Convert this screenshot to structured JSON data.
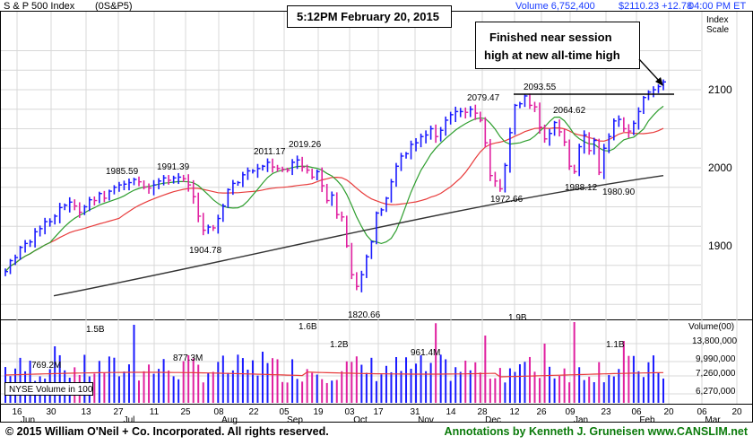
{
  "header": {
    "index_name": "S & P 500 Index",
    "symbol": "(0S&P5)",
    "volume": "Volume 6,752,400",
    "price": "$2110.23 +12.78",
    "time": "04:00 PM ET",
    "scale_label_1": "Index",
    "scale_label_2": "Scale"
  },
  "annotations": {
    "timestamp": "5:12PM February 20, 2015",
    "note_line1": "Finished near session",
    "note_line2": "high at new all-time high"
  },
  "footer": {
    "left": "© 2015  William O'Neil + Co. Incorporated. All rights reserved.",
    "right": "Annotations by Kenneth J. Gruneisen www.CANSLIM.net"
  },
  "volume_panel": {
    "title": "Volume(00)",
    "legend": "NYSE Volume in 100"
  },
  "chart_data": {
    "type": "bar",
    "price_axis": {
      "ticks": [
        1900,
        2000,
        2100
      ],
      "range": [
        1815,
        2160
      ]
    },
    "volume_axis": {
      "ticks": [
        "13,800,000",
        "9,990,000",
        "7,260,000",
        "6,270,000"
      ]
    },
    "date_labels": [
      {
        "day": "16",
        "month": "Jun"
      },
      {
        "day": "30",
        "month": ""
      },
      {
        "day": "13",
        "month": ""
      },
      {
        "day": "27",
        "month": "Jul"
      },
      {
        "day": "11",
        "month": ""
      },
      {
        "day": "25",
        "month": ""
      },
      {
        "day": "08",
        "month": "Aug"
      },
      {
        "day": "22",
        "month": ""
      },
      {
        "day": "05",
        "month": "Sep"
      },
      {
        "day": "19",
        "month": ""
      },
      {
        "day": "03",
        "month": "Oct"
      },
      {
        "day": "17",
        "month": ""
      },
      {
        "day": "31",
        "month": "Nov"
      },
      {
        "day": "14",
        "month": ""
      },
      {
        "day": "28",
        "month": "Dec"
      },
      {
        "day": "12",
        "month": ""
      },
      {
        "day": "26",
        "month": ""
      },
      {
        "day": "09",
        "month": "Jan"
      },
      {
        "day": "23",
        "month": ""
      },
      {
        "day": "06",
        "month": "Feb"
      },
      {
        "day": "20",
        "month": ""
      },
      {
        "day": "06",
        "month": "Mar"
      },
      {
        "day": "20",
        "month": ""
      }
    ],
    "price_labels": [
      "1985.59",
      "1991.39",
      "1904.78",
      "2011.17",
      "2019.26",
      "1820.66",
      "2079.47",
      "2093.55",
      "1972.66",
      "2064.62",
      "1988.12",
      "1980.90"
    ],
    "volume_labels": [
      "769.2M",
      "1.5B",
      "877.3M",
      "1.6B",
      "1.2B",
      "961.4M",
      "1.9B",
      "1.1B"
    ],
    "series": [
      {
        "name": "price",
        "values": [
          1867,
          1881,
          1885,
          1898,
          1903,
          1905,
          1918,
          1922,
          1931,
          1931,
          1938,
          1949,
          1952,
          1956,
          1951,
          1943,
          1950,
          1959,
          1958,
          1967,
          1961,
          1970,
          1975,
          1978,
          1979,
          1981,
          1985,
          1982,
          1975,
          1974,
          1978,
          1983,
          1987,
          1984,
          1987,
          1988,
          1986,
          1978,
          1963,
          1938,
          1920,
          1924,
          1923,
          1935,
          1951,
          1972,
          1980,
          1981,
          1991,
          1996,
          1996,
          1999,
          2002,
          2007,
          2001,
          1999,
          1998,
          1997,
          2007,
          2010,
          2001,
          1997,
          1988,
          1995,
          1977,
          1958,
          1965,
          1940,
          1937,
          1900,
          1863,
          1848,
          1863,
          1886,
          1905,
          1942,
          1946,
          1961,
          1982,
          2002,
          2015,
          2018,
          2030,
          2032,
          2040,
          2042,
          2050,
          2040,
          2048,
          2061,
          2068,
          2072,
          2072,
          2071,
          2075,
          2070,
          2061,
          2032,
          1990,
          1983,
          1973,
          2003,
          2045,
          2080,
          2082,
          2092,
          2080,
          2078,
          2052,
          2037,
          2044,
          2058,
          2046,
          2033,
          2002,
          1995,
          2027,
          2042,
          2022,
          2035,
          1994,
          2025,
          2040,
          2060,
          2062,
          2050,
          2047,
          2057,
          2072,
          2090,
          2097,
          2100,
          2104,
          2110
        ]
      }
    ],
    "moving_averages": [
      {
        "name": "50-day",
        "color": "#2e9e2e"
      },
      {
        "name": "200-day",
        "color": "#e83c3c"
      },
      {
        "name": "long-term",
        "color": "#333333"
      }
    ]
  },
  "colors": {
    "up": "#1a1aff",
    "down": "#e020a0",
    "grid": "#d8d8d8",
    "ma_green": "#2e9e2e",
    "ma_red": "#e83c3c",
    "ma_black": "#333333"
  }
}
